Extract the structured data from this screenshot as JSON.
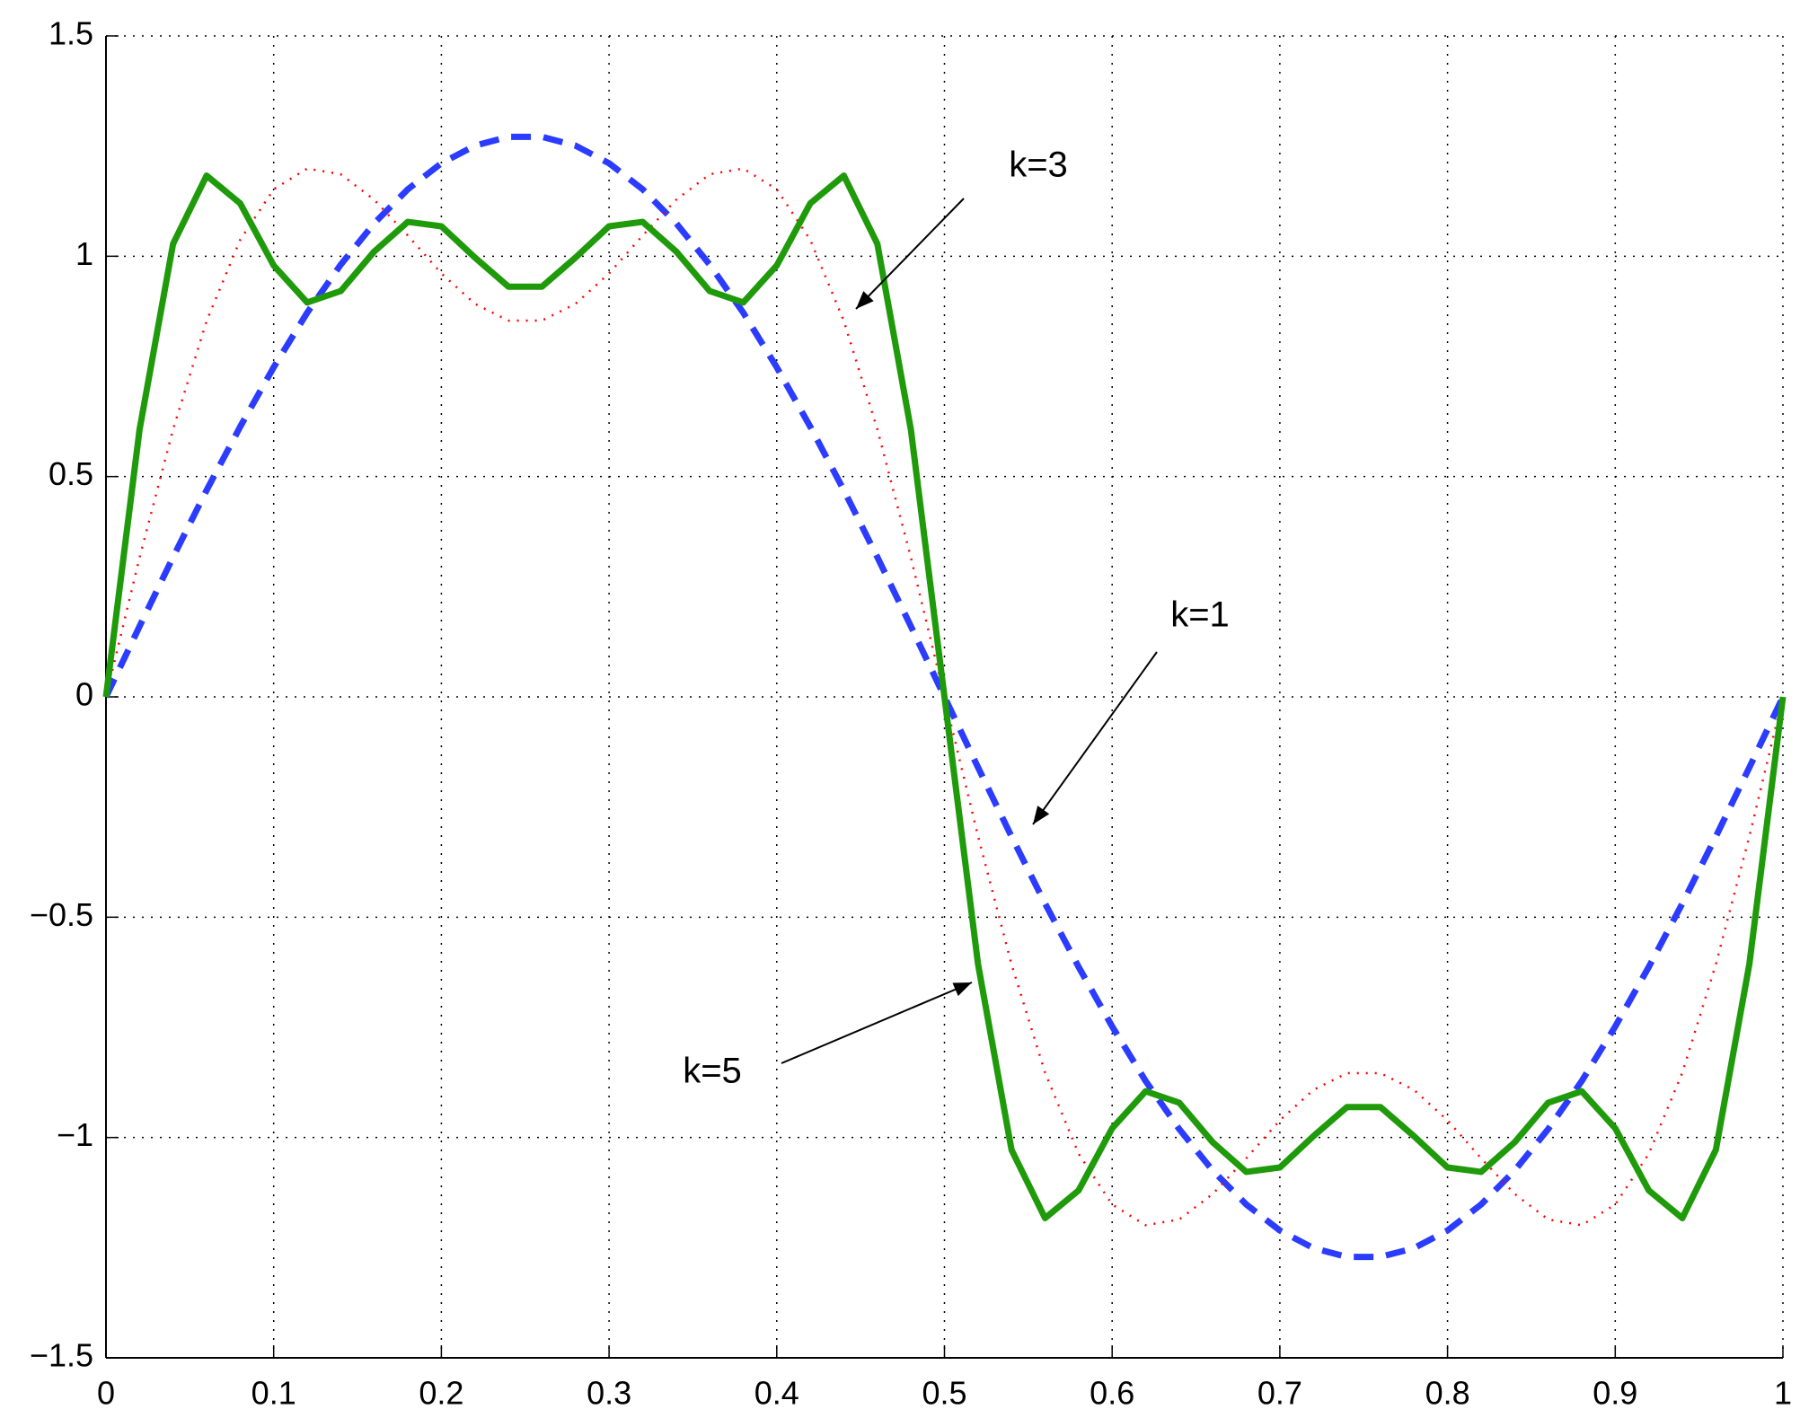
{
  "chart_data": {
    "type": "line",
    "x": [
      0,
      0.02,
      0.04,
      0.06,
      0.08,
      0.1,
      0.12,
      0.14,
      0.16,
      0.18,
      0.2,
      0.22,
      0.24,
      0.26,
      0.28,
      0.3,
      0.32,
      0.34,
      0.36,
      0.38,
      0.4,
      0.42,
      0.44,
      0.46,
      0.48,
      0.5,
      0.52,
      0.54,
      0.56,
      0.58,
      0.6,
      0.62,
      0.64,
      0.66,
      0.68,
      0.7,
      0.72,
      0.74,
      0.76,
      0.78,
      0.8,
      0.82,
      0.84,
      0.86,
      0.88,
      0.9,
      0.92,
      0.94,
      0.96,
      0.98,
      1
    ],
    "series": [
      {
        "color": "#2b3cff",
        "style": "dashed",
        "values": [
          0,
          0.16,
          0.317,
          0.469,
          0.613,
          0.748,
          0.872,
          0.981,
          1.075,
          1.152,
          1.211,
          1.251,
          1.271,
          1.271,
          1.251,
          1.211,
          1.152,
          1.075,
          0.981,
          0.872,
          0.748,
          0.613,
          0.469,
          0.317,
          0.16,
          0,
          -0.16,
          -0.317,
          -0.469,
          -0.613,
          -0.748,
          -0.872,
          -0.981,
          -1.075,
          -1.152,
          -1.211,
          -1.251,
          -1.271,
          -1.271,
          -1.251,
          -1.211,
          -1.152,
          -1.075,
          -0.981,
          -0.872,
          -0.748,
          -0.613,
          -0.469,
          -0.317,
          -0.16,
          0
        ]
      },
      {
        "color": "#ff0000",
        "style": "dotted",
        "values": [
          0,
          0.316,
          0.607,
          0.853,
          1.037,
          1.152,
          1.199,
          1.186,
          1.128,
          1.047,
          0.961,
          0.892,
          0.854,
          0.854,
          0.892,
          0.961,
          1.047,
          1.128,
          1.186,
          1.199,
          1.152,
          1.037,
          0.853,
          0.607,
          0.316,
          0,
          -0.316,
          -0.607,
          -0.853,
          -1.037,
          -1.152,
          -1.199,
          -1.186,
          -1.128,
          -1.047,
          -0.961,
          -0.892,
          -0.854,
          -0.854,
          -0.892,
          -0.961,
          -1.047,
          -1.128,
          -1.186,
          -1.199,
          -1.152,
          -1.037,
          -0.853,
          -0.607,
          -0.316,
          0
        ]
      },
      {
        "color": "#1f9a0a",
        "style": "solid",
        "values": [
          0,
          0.606,
          1.028,
          1.183,
          1.12,
          0.979,
          0.895,
          0.921,
          1.011,
          1.078,
          1.068,
          0.997,
          0.931,
          0.931,
          0.997,
          1.068,
          1.078,
          1.011,
          0.921,
          0.895,
          0.979,
          1.12,
          1.183,
          1.028,
          0.606,
          0,
          -0.606,
          -1.028,
          -1.183,
          -1.12,
          -0.979,
          -0.895,
          -0.921,
          -1.011,
          -1.078,
          -1.068,
          -0.997,
          -0.931,
          -0.931,
          -0.997,
          -1.068,
          -1.078,
          -1.011,
          -0.921,
          -0.895,
          -0.979,
          -1.12,
          -1.183,
          -1.028,
          -0.606,
          0
        ]
      }
    ],
    "annotations": [
      {
        "text": "k=3"
      },
      {
        "text": "k=1"
      },
      {
        "text": "k=5"
      }
    ],
    "xlim": [
      0,
      1
    ],
    "xticks": [
      0,
      0.1,
      0.2,
      0.3,
      0.4,
      0.5,
      0.6,
      0.7,
      0.8,
      0.9,
      1
    ],
    "ylim": [
      -1.5,
      1.5
    ],
    "yticks": [
      -1.5,
      -1,
      -0.5,
      0,
      0.5,
      1,
      1.5
    ],
    "grid": true
  }
}
